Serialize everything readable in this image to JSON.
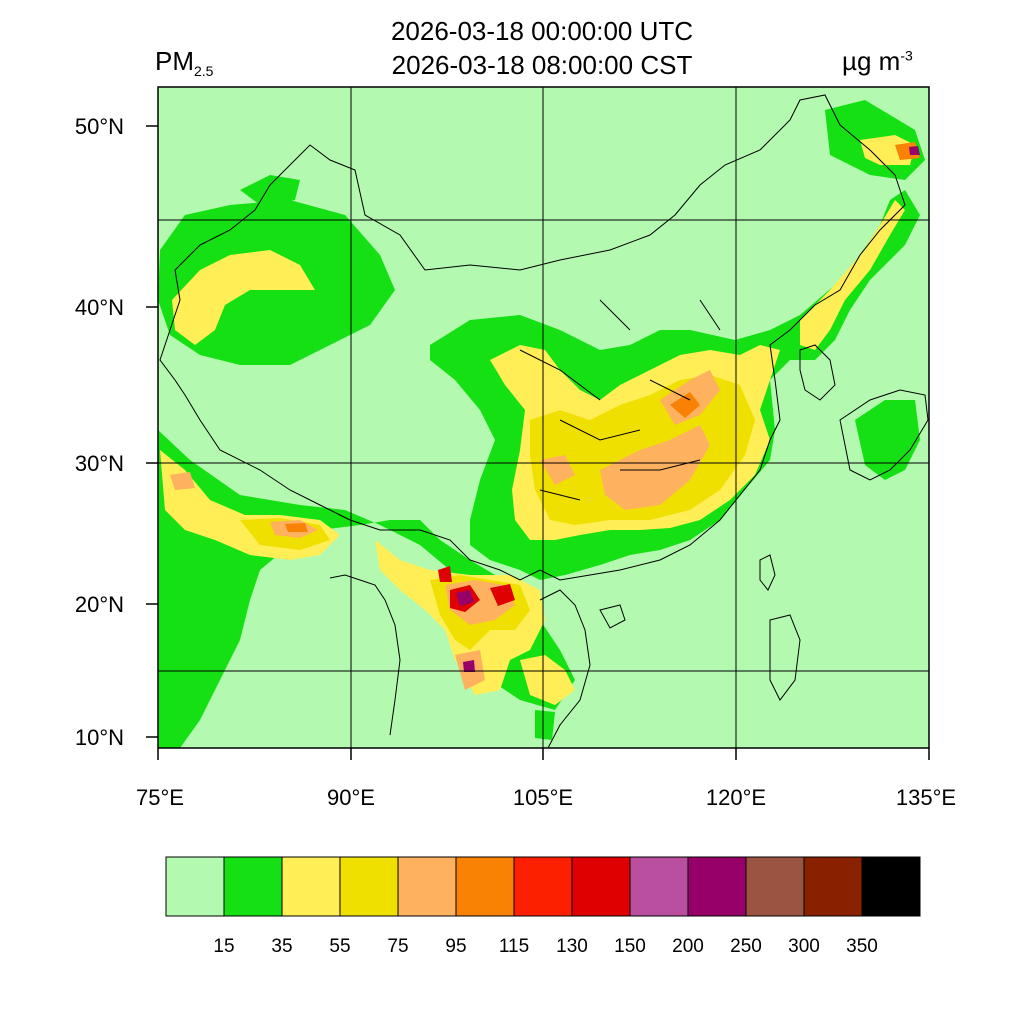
{
  "header": {
    "time_utc": "2026-03-18 00:00:00 UTC",
    "time_local": "2026-03-18 08:00:00 CST",
    "variable": "PM",
    "variable_sub": "2.5",
    "unit": "µg m",
    "unit_exp": "-3"
  },
  "map": {
    "lon_range": [
      75,
      135
    ],
    "lat_range": [
      9,
      52
    ],
    "lon_ticks": [
      "75°E",
      "90°E",
      "105°E",
      "120°E",
      "135°E"
    ],
    "lat_ticks": [
      "10°N",
      "20°N",
      "30°N",
      "40°N",
      "50°N"
    ]
  },
  "colorbar": {
    "colors": [
      "#b3f9b0",
      "#14e014",
      "#ffee55",
      "#f0e000",
      "#feb15f",
      "#f98103",
      "#fd2000",
      "#df0001",
      "#ba4fa0",
      "#980069",
      "#9b5342",
      "#892000",
      "#000000"
    ],
    "labels": [
      "15",
      "35",
      "55",
      "75",
      "95",
      "115",
      "130",
      "150",
      "200",
      "250",
      "300",
      "350"
    ]
  }
}
